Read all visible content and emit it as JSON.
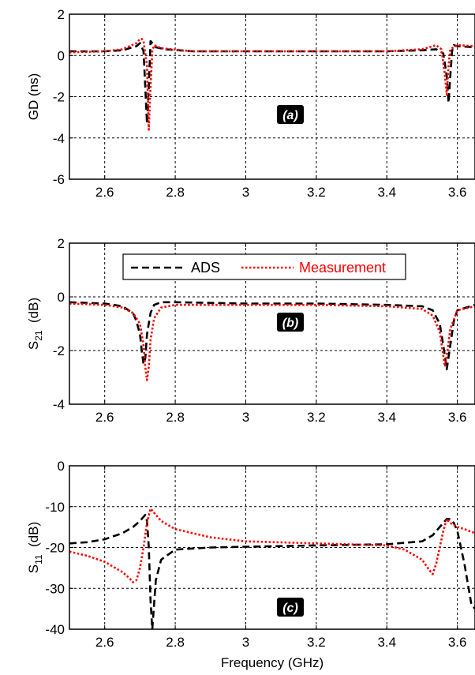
{
  "figure": {
    "xlabel": "Frequency (GHz)"
  },
  "legend": {
    "items": [
      "ADS",
      "Measurement"
    ]
  },
  "colors": {
    "ads": "#000000",
    "measurement": "#ff0000",
    "grid": "#000000"
  },
  "chart_data": [
    {
      "type": "line",
      "panel_label": "(a)",
      "ylabel": "GD (ns)",
      "xlim": [
        2.5,
        3.65
      ],
      "ylim": [
        -6,
        2
      ],
      "xticks": [
        2.6,
        2.8,
        3,
        3.2,
        3.4,
        3.6
      ],
      "xtick_labels": [
        "2.6",
        "2.8",
        "3",
        "3.2",
        "3.4",
        "3.6"
      ],
      "yticks": [
        -6,
        -4,
        -2,
        0,
        2
      ],
      "ytick_labels": [
        "-6",
        "-4",
        "-2",
        "0",
        "2"
      ],
      "grid": true,
      "series": [
        {
          "name": "ADS",
          "style": "dashed",
          "x": [
            2.5,
            2.6,
            2.65,
            2.69,
            2.7,
            2.71,
            2.715,
            2.72,
            2.725,
            2.73,
            2.735,
            2.745,
            2.77,
            2.85,
            3.0,
            3.2,
            3.4,
            3.5,
            3.54,
            3.56,
            3.57,
            3.575,
            3.58,
            3.585,
            3.59,
            3.6,
            3.65
          ],
          "y": [
            0.2,
            0.2,
            0.25,
            0.45,
            0.6,
            0.2,
            -1.5,
            -3.3,
            -1.5,
            0.7,
            0.6,
            0.4,
            0.3,
            0.2,
            0.2,
            0.2,
            0.2,
            0.25,
            0.3,
            0.1,
            -1.0,
            -2.3,
            -1.0,
            0.2,
            0.5,
            0.45,
            0.4
          ]
        },
        {
          "name": "Measurement",
          "style": "dotted",
          "x": [
            2.5,
            2.6,
            2.65,
            2.69,
            2.7,
            2.705,
            2.71,
            2.72,
            2.725,
            2.73,
            2.735,
            2.74,
            2.76,
            2.85,
            3.0,
            3.2,
            3.4,
            3.5,
            3.54,
            3.555,
            3.565,
            3.57,
            3.575,
            3.58,
            3.6,
            3.65
          ],
          "y": [
            0.15,
            0.2,
            0.3,
            0.6,
            0.8,
            0.8,
            0.7,
            -0.5,
            -3.6,
            -1.5,
            0.2,
            0.5,
            0.35,
            0.2,
            0.2,
            0.2,
            0.2,
            0.3,
            0.5,
            0.3,
            -1.0,
            -1.9,
            -0.5,
            0.3,
            0.5,
            0.45
          ]
        }
      ]
    },
    {
      "type": "line",
      "panel_label": "(b)",
      "ylabel": "S21 (dB)",
      "ylabel_main": "S",
      "ylabel_sub": "21",
      "ylabel_unit": "(dB)",
      "xlim": [
        2.5,
        3.65
      ],
      "ylim": [
        -4,
        2
      ],
      "xticks": [
        2.6,
        2.8,
        3,
        3.2,
        3.4,
        3.6
      ],
      "xtick_labels": [
        "2.6",
        "2.8",
        "3",
        "3.2",
        "3.4",
        "3.6"
      ],
      "yticks": [
        -4,
        -2,
        0,
        2
      ],
      "ytick_labels": [
        "-4",
        "-2",
        "0",
        "2"
      ],
      "grid": true,
      "legend_position": "top-center",
      "series": [
        {
          "name": "ADS",
          "style": "dashed",
          "x": [
            2.5,
            2.6,
            2.65,
            2.68,
            2.69,
            2.7,
            2.705,
            2.71,
            2.715,
            2.72,
            2.73,
            2.74,
            2.76,
            2.8,
            3.0,
            3.2,
            3.4,
            3.5,
            3.53,
            3.55,
            3.56,
            3.57,
            3.58,
            3.59,
            3.6,
            3.65
          ],
          "y": [
            -0.2,
            -0.25,
            -0.35,
            -0.6,
            -0.9,
            -1.4,
            -2.0,
            -2.5,
            -2.3,
            -1.4,
            -0.6,
            -0.3,
            -0.2,
            -0.2,
            -0.25,
            -0.25,
            -0.3,
            -0.35,
            -0.5,
            -1.0,
            -1.8,
            -2.7,
            -1.8,
            -0.9,
            -0.5,
            -0.3
          ]
        },
        {
          "name": "Measurement",
          "style": "dotted",
          "x": [
            2.5,
            2.6,
            2.65,
            2.68,
            2.7,
            2.71,
            2.715,
            2.72,
            2.725,
            2.73,
            2.74,
            2.76,
            2.8,
            3.0,
            3.2,
            3.4,
            3.5,
            3.53,
            3.55,
            3.56,
            3.565,
            3.57,
            3.58,
            3.6,
            3.65
          ],
          "y": [
            -0.25,
            -0.3,
            -0.4,
            -0.6,
            -1.0,
            -1.8,
            -2.6,
            -3.1,
            -2.6,
            -1.6,
            -0.8,
            -0.4,
            -0.3,
            -0.3,
            -0.3,
            -0.35,
            -0.45,
            -0.7,
            -1.3,
            -2.2,
            -2.6,
            -2.2,
            -1.2,
            -0.5,
            -0.35
          ]
        }
      ]
    },
    {
      "type": "line",
      "panel_label": "(c)",
      "ylabel": "S11 (dB)",
      "ylabel_main": "S",
      "ylabel_sub": "11",
      "ylabel_unit": "(dB)",
      "xlim": [
        2.5,
        3.65
      ],
      "ylim": [
        -40,
        0
      ],
      "xticks": [
        2.6,
        2.8,
        3,
        3.2,
        3.4,
        3.6
      ],
      "xtick_labels": [
        "2.6",
        "2.8",
        "3",
        "3.2",
        "3.4",
        "3.6"
      ],
      "yticks": [
        -40,
        -30,
        -20,
        -10,
        0
      ],
      "ytick_labels": [
        "-40",
        "-30",
        "-20",
        "-10",
        "0"
      ],
      "grid": true,
      "series": [
        {
          "name": "ADS",
          "style": "dashed",
          "x": [
            2.5,
            2.55,
            2.6,
            2.65,
            2.68,
            2.7,
            2.71,
            2.715,
            2.72,
            2.725,
            2.73,
            2.735,
            2.745,
            2.76,
            2.8,
            2.9,
            3.0,
            3.2,
            3.4,
            3.5,
            3.53,
            3.55,
            3.56,
            3.57,
            3.58,
            3.59,
            3.6,
            3.62,
            3.64,
            3.65
          ],
          "y": [
            -19,
            -18.7,
            -18,
            -16.5,
            -15,
            -13.5,
            -12.5,
            -12,
            -13.5,
            -20,
            -33,
            -40,
            -28,
            -23,
            -20.5,
            -20,
            -19.8,
            -19.5,
            -19.2,
            -18.5,
            -17,
            -15,
            -14,
            -13,
            -13,
            -14,
            -16,
            -24,
            -34,
            -35
          ]
        },
        {
          "name": "Measurement",
          "style": "dotted",
          "x": [
            2.5,
            2.55,
            2.6,
            2.65,
            2.67,
            2.68,
            2.69,
            2.7,
            2.71,
            2.72,
            2.73,
            2.74,
            2.76,
            2.8,
            2.9,
            3.0,
            3.2,
            3.4,
            3.45,
            3.5,
            3.52,
            3.53,
            3.54,
            3.55,
            3.56,
            3.57,
            3.58,
            3.6,
            3.62,
            3.65
          ],
          "y": [
            -21,
            -22,
            -23.5,
            -26,
            -27.5,
            -28.5,
            -28,
            -25,
            -20,
            -14,
            -10.5,
            -11.5,
            -13.5,
            -15.5,
            -17.5,
            -18.5,
            -19,
            -19.5,
            -20.5,
            -23,
            -25.5,
            -26.5,
            -24,
            -20,
            -16,
            -13,
            -14,
            -15,
            -15.5,
            -16.5
          ]
        }
      ]
    }
  ]
}
